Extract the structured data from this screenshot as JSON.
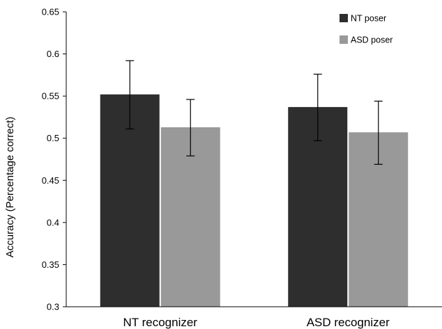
{
  "chart_data": {
    "type": "bar",
    "title": "",
    "xlabel": "",
    "ylabel": "Accuracy (Percentage correct)",
    "ylim": [
      0.3,
      0.65
    ],
    "yticks": [
      "0.3",
      "0.35",
      "0.4",
      "0.45",
      "0.5",
      "0.55",
      "0.6",
      "0.65"
    ],
    "categories": [
      "NT recognizer",
      "ASD recognizer"
    ],
    "series": [
      {
        "name": "NT poser",
        "color": "#2e2e2e",
        "values": [
          0.552,
          0.537
        ],
        "error_low": [
          0.511,
          0.497
        ],
        "error_high": [
          0.592,
          0.576
        ]
      },
      {
        "name": "ASD poser",
        "color": "#999999",
        "values": [
          0.513,
          0.507
        ],
        "error_low": [
          0.479,
          0.469
        ],
        "error_high": [
          0.546,
          0.544
        ]
      }
    ],
    "grid": false,
    "legend_position": "top-right"
  }
}
